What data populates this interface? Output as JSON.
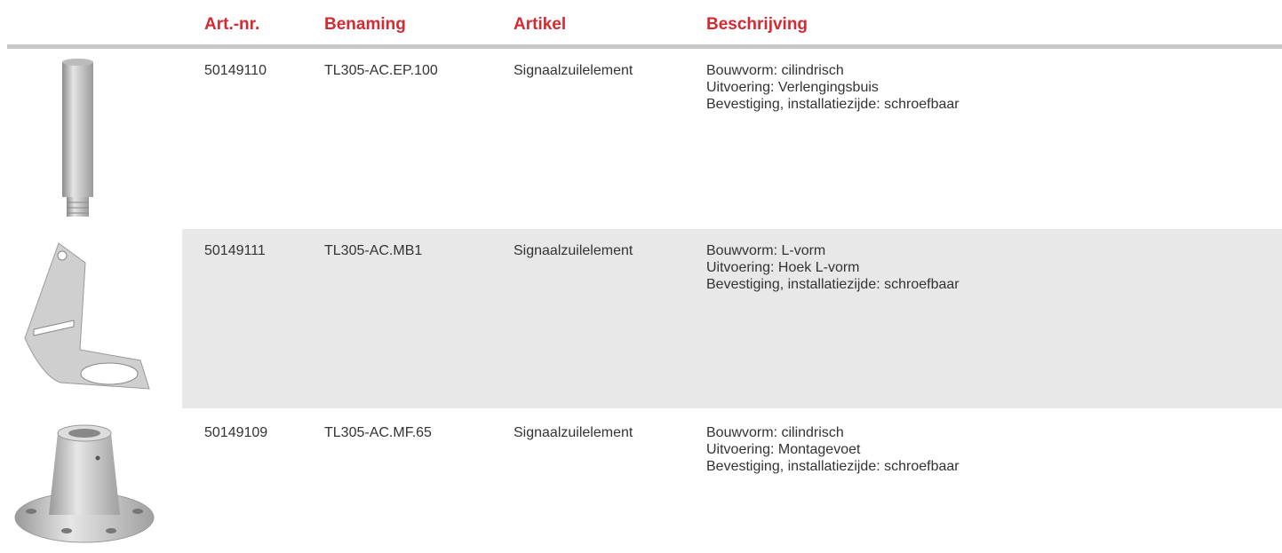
{
  "table": {
    "columns": [
      "Art.-nr.",
      "Benaming",
      "Artikel",
      "Beschrijving"
    ],
    "rows": [
      [
        "50149110",
        "TL305-AC.EP.100",
        "Signaalzuilelement",
        [
          "Bouwvorm: cilindrisch",
          "Uitvoering: Verlengingsbuis",
          "Bevestiging, installatiezijde: schroefbaar"
        ]
      ],
      [
        "50149111",
        "TL305-AC.MB1",
        "Signaalzuilelement",
        [
          "Bouwvorm: L-vorm",
          "Uitvoering: Hoek L-vorm",
          "Bevestiging, installatiezijde: schroefbaar"
        ]
      ],
      [
        "50149109",
        "TL305-AC.MF.65",
        "Signaalzuilelement",
        [
          "Bouwvorm: cilindrisch",
          "Uitvoering: Montagevoet",
          "Bevestiging, installatiezijde: schroefbaar"
        ]
      ]
    ]
  }
}
